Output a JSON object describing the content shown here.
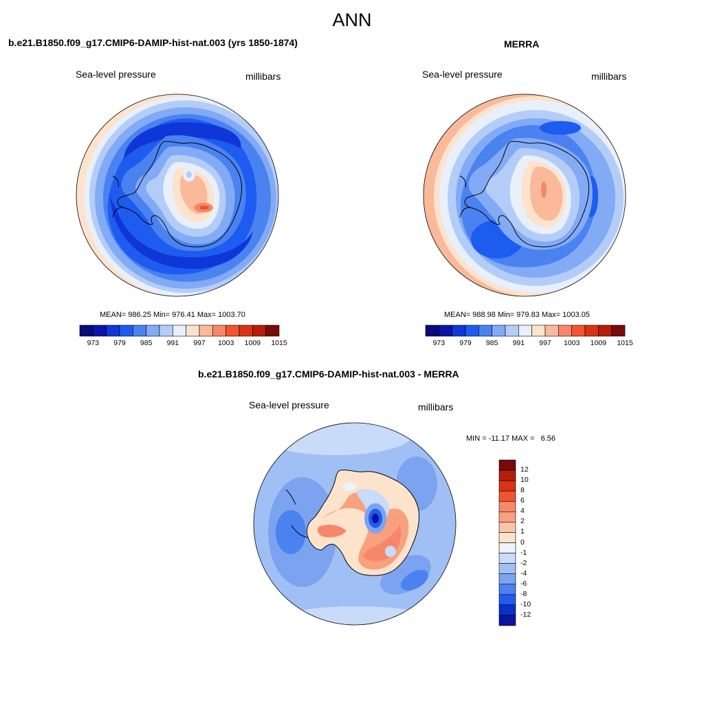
{
  "suptitle": "ANN",
  "panels": {
    "model": {
      "title": "b.e21.B1850.f09_g17.CMIP6-DAMIP-hist-nat.003 (yrs 1850-1874)",
      "left_label": "Sea-level pressure",
      "right_label": "millibars",
      "stats": "MEAN= 986.25  Min= 976.41  Max= 1003.70",
      "mean": 986.25,
      "min": 976.41,
      "max": 1003.7
    },
    "obs": {
      "title": "MERRA",
      "left_label": "Sea-level pressure",
      "right_label": "millibars",
      "stats": "MEAN= 988.98  Min= 979.83  Max= 1003.05",
      "mean": 988.98,
      "min": 979.83,
      "max": 1003.05
    },
    "diff": {
      "title": "b.e21.B1850.f09_g17.CMIP6-DAMIP-hist-nat.003 - MERRA",
      "left_label": "Sea-level pressure",
      "right_label": "millibars",
      "stats": "MIN = -11.17 MAX =   6.56",
      "min": -11.17,
      "max": 6.56
    }
  },
  "colorbars": {
    "abs": {
      "orientation": "horizontal",
      "levels": [
        973,
        976,
        979,
        982,
        985,
        988,
        991,
        994,
        997,
        1000,
        1003,
        1006,
        1009,
        1012,
        1015
      ],
      "tick_labels": [
        "973",
        "979",
        "985",
        "991",
        "997",
        "1003",
        "1009",
        "1015"
      ],
      "colors": [
        "#0a0a78",
        "#0a14a8",
        "#0f37d8",
        "#1e5cf0",
        "#4a82f0",
        "#82aaf5",
        "#b4cdf8",
        "#e8f0fb",
        "#fde3cc",
        "#f9b99a",
        "#f7876a",
        "#f0552d",
        "#dc3214",
        "#b41e0a",
        "#780a0a"
      ]
    },
    "diff": {
      "orientation": "vertical",
      "levels": [
        -12,
        -10,
        -8,
        -6,
        -4,
        -2,
        -1,
        0,
        1,
        2,
        4,
        6,
        8,
        10,
        12
      ],
      "tick_labels": [
        "12",
        "10",
        "8",
        "6",
        "4",
        "2",
        "1",
        "0",
        "-1",
        "-2",
        "-4",
        "-6",
        "-8",
        "-10",
        "-12"
      ],
      "colors_top_to_bottom": [
        "#780a0a",
        "#b41e0a",
        "#dc3214",
        "#f0552d",
        "#f7876a",
        "#f9a07e",
        "#fbc6a8",
        "#fde3cc",
        "#eef3fb",
        "#c8dbf8",
        "#a0c0f5",
        "#7ba3f0",
        "#4a82f0",
        "#1e5cf0",
        "#0a30c8",
        "#0a14a0"
      ]
    }
  }
}
